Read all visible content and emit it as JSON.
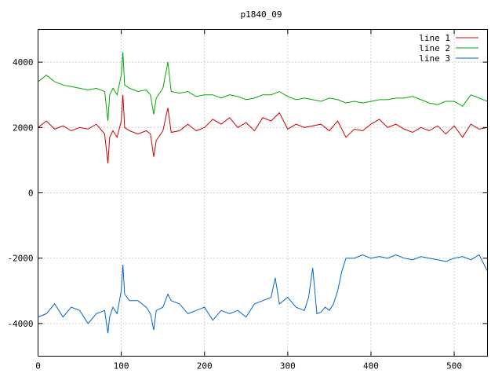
{
  "chart_data": {
    "type": "line",
    "title": "p1840_09",
    "xlabel": "",
    "ylabel": "",
    "xlim": [
      0,
      540
    ],
    "ylim": [
      -5000,
      5000
    ],
    "xticks": [
      0,
      100,
      200,
      300,
      400,
      500
    ],
    "yticks": [
      -4000,
      -2000,
      0,
      2000,
      4000
    ],
    "grid": true,
    "legend_position": "top-right",
    "series": [
      {
        "name": "line 1",
        "color": "#cc0000",
        "x": [
          0,
          10,
          20,
          30,
          40,
          50,
          60,
          70,
          80,
          84,
          86,
          90,
          95,
          100,
          102,
          104,
          110,
          120,
          130,
          135,
          139,
          142,
          150,
          156,
          160,
          170,
          180,
          190,
          200,
          210,
          220,
          230,
          240,
          250,
          260,
          270,
          280,
          290,
          300,
          310,
          320,
          330,
          340,
          350,
          360,
          370,
          380,
          390,
          400,
          410,
          420,
          430,
          440,
          450,
          460,
          470,
          480,
          490,
          500,
          510,
          520,
          530,
          540
        ],
        "y": [
          2000,
          2200,
          1950,
          2050,
          1900,
          2000,
          1950,
          2100,
          1800,
          900,
          1700,
          1900,
          1700,
          2200,
          3000,
          2000,
          1900,
          1800,
          1900,
          1800,
          1100,
          1600,
          1900,
          2600,
          1850,
          1900,
          2100,
          1900,
          2000,
          2250,
          2100,
          2300,
          2000,
          2150,
          1900,
          2300,
          2200,
          2450,
          1950,
          2100,
          2000,
          2050,
          2100,
          1900,
          2200,
          1700,
          1950,
          1900,
          2100,
          2250,
          2000,
          2100,
          1950,
          1850,
          2000,
          1900,
          2050,
          1800,
          2050,
          1700,
          2100,
          1950,
          2000
        ]
      },
      {
        "name": "line 2",
        "color": "#00aa00",
        "x": [
          0,
          10,
          20,
          30,
          40,
          50,
          60,
          70,
          80,
          84,
          86,
          90,
          95,
          100,
          102,
          104,
          110,
          120,
          130,
          135,
          139,
          142,
          150,
          156,
          160,
          170,
          180,
          190,
          200,
          210,
          220,
          230,
          240,
          250,
          260,
          270,
          280,
          290,
          300,
          310,
          320,
          330,
          340,
          350,
          360,
          370,
          380,
          390,
          400,
          410,
          420,
          430,
          440,
          450,
          460,
          470,
          480,
          490,
          500,
          510,
          520,
          530,
          540
        ],
        "y": [
          3400,
          3600,
          3400,
          3300,
          3250,
          3200,
          3150,
          3200,
          3100,
          2200,
          3000,
          3200,
          3000,
          3600,
          4300,
          3300,
          3200,
          3100,
          3150,
          3000,
          2400,
          2900,
          3200,
          4000,
          3100,
          3050,
          3100,
          2950,
          3000,
          3000,
          2900,
          3000,
          2950,
          2850,
          2900,
          3000,
          3000,
          3100,
          2950,
          2850,
          2900,
          2850,
          2800,
          2900,
          2850,
          2750,
          2800,
          2750,
          2800,
          2850,
          2850,
          2900,
          2900,
          2950,
          2850,
          2750,
          2700,
          2800,
          2800,
          2650,
          3000,
          2900,
          2800
        ]
      },
      {
        "name": "line 3",
        "color": "#0066cc",
        "x": [
          0,
          10,
          20,
          30,
          40,
          50,
          60,
          70,
          80,
          84,
          86,
          90,
          95,
          100,
          102,
          104,
          110,
          120,
          130,
          135,
          139,
          142,
          150,
          156,
          160,
          170,
          180,
          190,
          200,
          210,
          220,
          230,
          240,
          250,
          260,
          270,
          280,
          285,
          290,
          300,
          310,
          320,
          325,
          330,
          335,
          340,
          345,
          350,
          355,
          360,
          365,
          370,
          380,
          390,
          400,
          410,
          420,
          430,
          440,
          450,
          460,
          470,
          480,
          490,
          500,
          510,
          520,
          530,
          540
        ],
        "y": [
          -3800,
          -3700,
          -3400,
          -3800,
          -3500,
          -3600,
          -4000,
          -3700,
          -3600,
          -4300,
          -3800,
          -3500,
          -3700,
          -3000,
          -2200,
          -3100,
          -3300,
          -3300,
          -3500,
          -3700,
          -4200,
          -3600,
          -3500,
          -3100,
          -3300,
          -3400,
          -3700,
          -3600,
          -3500,
          -3900,
          -3600,
          -3700,
          -3600,
          -3800,
          -3400,
          -3300,
          -3200,
          -2600,
          -3400,
          -3200,
          -3500,
          -3600,
          -3200,
          -2300,
          -3700,
          -3650,
          -3500,
          -3600,
          -3400,
          -3000,
          -2400,
          -2000,
          -2000,
          -1900,
          -2000,
          -1950,
          -2000,
          -1900,
          -2000,
          -2050,
          -1950,
          -2000,
          -2050,
          -2100,
          -2000,
          -1950,
          -2050,
          -1900,
          -2400
        ]
      }
    ]
  }
}
